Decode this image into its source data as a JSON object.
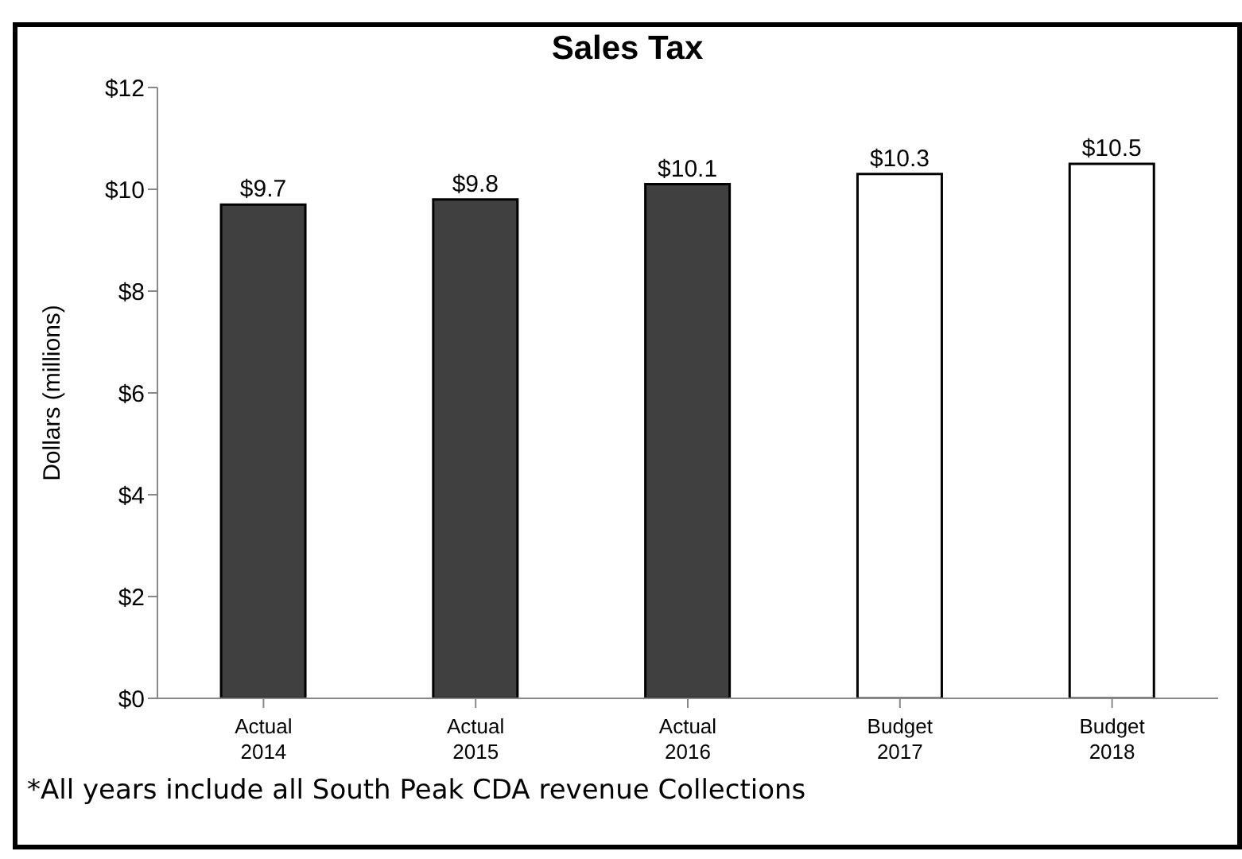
{
  "chart_data": {
    "type": "bar",
    "title": "Sales Tax",
    "ylabel": "Dollars  (millions)",
    "categories": [
      "Actual 2014",
      "Actual 2015",
      "Actual 2016",
      "Budget 2017",
      "Budget 2018"
    ],
    "values": [
      9.7,
      9.8,
      10.1,
      10.3,
      10.5
    ],
    "colors": [
      "#404040",
      "#404040",
      "#404040",
      "#ffffff",
      "#ffffff"
    ],
    "value_labels": [
      "$9.7",
      "$9.8",
      "$10.1",
      "$10.3",
      "$10.5"
    ],
    "ylim": [
      0,
      12
    ],
    "yticks": [
      {
        "value": 0,
        "label": "$0"
      },
      {
        "value": 2,
        "label": "$2"
      },
      {
        "value": 4,
        "label": "$4"
      },
      {
        "value": 6,
        "label": "$6"
      },
      {
        "value": 8,
        "label": "$8"
      },
      {
        "value": 10,
        "label": "$10"
      },
      {
        "value": 12,
        "label": "$12"
      }
    ],
    "grid": false,
    "annotations": [
      "*All years include all South Peak CDA revenue Collections"
    ]
  }
}
